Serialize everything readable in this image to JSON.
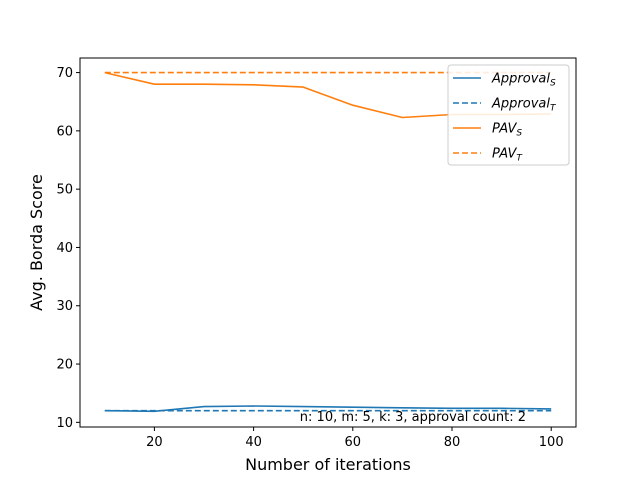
{
  "chart_data": {
    "type": "line",
    "title": "",
    "xlabel": "Number of iterations",
    "ylabel": "Avg. Borda Score",
    "xlim": [
      5,
      105
    ],
    "ylim": [
      9.2,
      72.5
    ],
    "xticks": [
      20,
      40,
      60,
      80,
      100
    ],
    "yticks": [
      10,
      20,
      30,
      40,
      50,
      60,
      70
    ],
    "grid": false,
    "legend_position": "top-right",
    "annotation": "n: 10, m: 5, k: 3, approval count: 2",
    "x": [
      10,
      20,
      30,
      40,
      50,
      60,
      70,
      80,
      90,
      100
    ],
    "series": [
      {
        "name": "Approval",
        "subscript": "S",
        "color": "#1f77b4",
        "dash": "solid",
        "values": [
          12.0,
          11.9,
          12.7,
          12.8,
          12.7,
          12.6,
          12.5,
          12.4,
          12.4,
          12.3
        ]
      },
      {
        "name": "Approval",
        "subscript": "T",
        "color": "#1f77b4",
        "dash": "dashed",
        "values": [
          12.0,
          12.0,
          12.0,
          12.0,
          12.0,
          12.0,
          12.0,
          12.0,
          12.0,
          12.0
        ]
      },
      {
        "name": "PAV",
        "subscript": "S",
        "color": "#ff7f0e",
        "dash": "solid",
        "values": [
          70.0,
          68.0,
          68.0,
          67.9,
          67.5,
          64.4,
          62.3,
          62.8,
          62.8,
          62.9
        ]
      },
      {
        "name": "PAV",
        "subscript": "T",
        "color": "#ff7f0e",
        "dash": "dashed",
        "values": [
          70.0,
          70.0,
          70.0,
          70.0,
          70.0,
          70.0,
          70.0,
          70.0,
          70.0,
          70.0
        ]
      }
    ]
  }
}
